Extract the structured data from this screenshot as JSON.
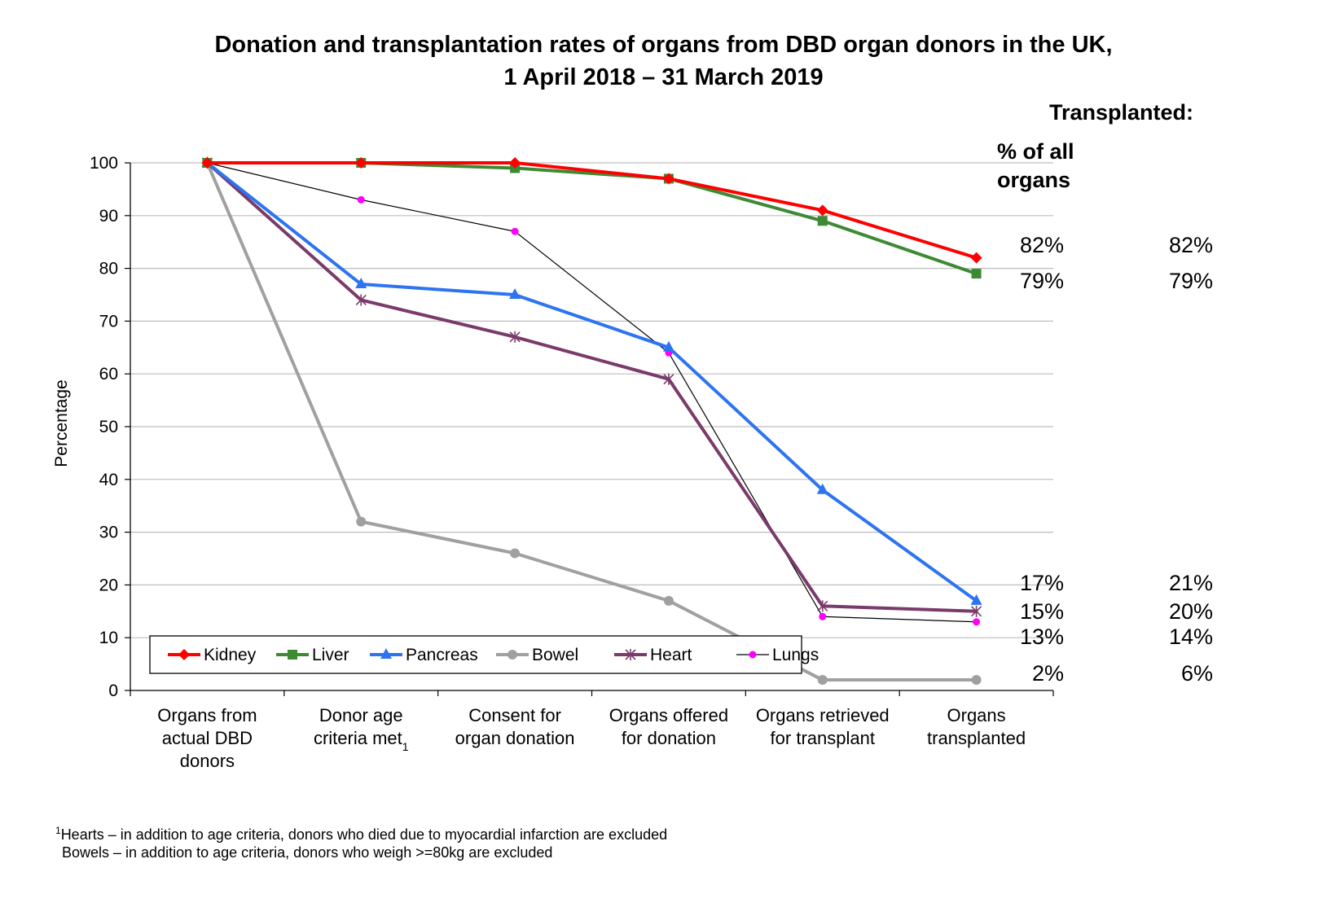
{
  "chart_data": {
    "type": "line",
    "title_line1": "Donation and transplantation rates of organs from DBD organ donors in the UK,",
    "title_line2": "1 April 2018 – 31 March 2019",
    "ylabel": "Percentage",
    "ylim": [
      0,
      100
    ],
    "yticks": [
      "0",
      "10",
      "20",
      "30",
      "40",
      "50",
      "60",
      "70",
      "80",
      "90",
      "100"
    ],
    "grid": true,
    "legend_position": "bottom-left",
    "categories": [
      [
        "Organs from",
        "actual DBD",
        "donors"
      ],
      [
        "Donor age",
        "criteria met"
      ],
      [
        "Consent for",
        "organ donation"
      ],
      [
        "Organs offered",
        "for donation"
      ],
      [
        "Organs retrieved",
        "for transplant"
      ],
      [
        "Organs",
        "transplanted"
      ]
    ],
    "category_footnote_marks": [
      "",
      "1",
      "",
      "",
      "",
      ""
    ],
    "series": [
      {
        "name": "Kidney",
        "color": "#ff0000",
        "marker": "diamond",
        "width": 4,
        "values": [
          100,
          100,
          100,
          97,
          91,
          82
        ]
      },
      {
        "name": "Liver",
        "color": "#3e8a34",
        "marker": "square",
        "width": 4,
        "values": [
          100,
          100,
          99,
          97,
          89,
          79
        ]
      },
      {
        "name": "Pancreas",
        "color": "#2d74f0",
        "marker": "triangle",
        "width": 4,
        "values": [
          100,
          77,
          75,
          65,
          38,
          17
        ]
      },
      {
        "name": "Bowel",
        "color": "#a0a0a0",
        "marker": "circle",
        "width": 4,
        "values": [
          100,
          32,
          26,
          17,
          2,
          2
        ]
      },
      {
        "name": "Heart",
        "color": "#7a3a6a",
        "marker": "star",
        "width": 4,
        "values": [
          100,
          74,
          67,
          59,
          16,
          15
        ]
      },
      {
        "name": "Lungs",
        "color": "#ff00ff",
        "line_color": "#000000",
        "marker": "dot",
        "width": 1.2,
        "values": [
          100,
          93,
          87,
          64,
          14,
          13
        ]
      }
    ],
    "annotations": {
      "header_transplanted": "Transplanted:",
      "header_pct_line1": "% of all",
      "header_pct_line2": "organs",
      "pct_of_all_organs": [
        {
          "text": "82%",
          "value": 82
        },
        {
          "text": "79%",
          "value": 79
        },
        {
          "text": "17%",
          "value": 17
        },
        {
          "text": "15%",
          "value": 15
        },
        {
          "text": "13%",
          "value": 13
        },
        {
          "text": "2%",
          "value": 2
        }
      ],
      "right_column": [
        {
          "text": "82%",
          "value": 82
        },
        {
          "text": "79%",
          "value": 79
        },
        {
          "text": "21%",
          "value": 21
        },
        {
          "text": "20%",
          "value": 20
        },
        {
          "text": "14%",
          "value": 14
        },
        {
          "text": "6%",
          "value": 6
        }
      ]
    },
    "footnotes": [
      {
        "mark": "1",
        "text": "Hearts – in addition to age criteria, donors who died due to myocardial infarction are excluded"
      },
      {
        "mark": "",
        "text": "Bowels – in addition to age criteria, donors who weigh >=80kg are excluded"
      }
    ]
  }
}
